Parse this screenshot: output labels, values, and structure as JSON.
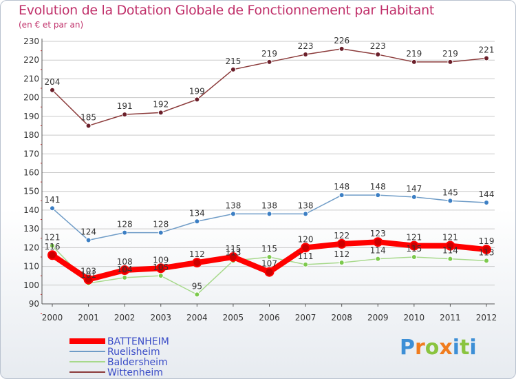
{
  "header": {
    "title": "Evolution de la Dotation Globale de Fonctionnement par Habitant",
    "subtitle": "(en € et par an)"
  },
  "logo": {
    "letters": [
      "P",
      "r",
      "o",
      "x",
      "i",
      "t",
      "i"
    ],
    "colors": [
      "#3d8fd6",
      "#f07c1e",
      "#8ac43f",
      "#f07c1e",
      "#3d8fd6",
      "#8ac43f",
      "#3d8fd6"
    ]
  },
  "chart_data": {
    "type": "line",
    "title": "Evolution de la Dotation Globale de Fonctionnement par Habitant",
    "subtitle": "(en € et par an)",
    "x": [
      "2000",
      "2001",
      "2002",
      "2003",
      "2004",
      "2005",
      "2006",
      "2007",
      "2008",
      "2009",
      "2010",
      "2011",
      "2012"
    ],
    "ylim": [
      90,
      230
    ],
    "yticks": [
      90,
      100,
      110,
      120,
      130,
      140,
      150,
      160,
      170,
      180,
      190,
      200,
      210,
      220,
      230
    ],
    "grid": "horizontal",
    "legend_position": "bottom-left",
    "series": [
      {
        "name": "BATTENHEIM",
        "color": "#ff0000",
        "marker_color": "#cc0000",
        "width": 8,
        "marker_r": 6,
        "values": [
          116,
          103,
          108,
          109,
          112,
          115,
          107,
          120,
          122,
          123,
          121,
          121,
          119
        ]
      },
      {
        "name": "Ruelisheim",
        "color": "#6f9cc7",
        "marker_color": "#3c7fc4",
        "width": 1.5,
        "marker_r": 3.5,
        "values": [
          141,
          124,
          128,
          128,
          134,
          138,
          138,
          138,
          148,
          148,
          147,
          145,
          144
        ]
      },
      {
        "name": "Baldersheim",
        "color": "#a7d98b",
        "marker_color": "#7cc94d",
        "width": 1.5,
        "marker_r": 3.5,
        "values": [
          121,
          101,
          104,
          105,
          95,
          113,
          115,
          111,
          112,
          114,
          115,
          114,
          113
        ]
      },
      {
        "name": "Wittenheim",
        "color": "#8b3a3a",
        "marker_color": "#6b1f2a",
        "width": 1.5,
        "marker_r": 3.5,
        "values": [
          204,
          185,
          191,
          192,
          199,
          215,
          219,
          223,
          226,
          223,
          219,
          219,
          221
        ]
      }
    ],
    "data_labels": {
      "BATTENHEIM": [
        "116",
        "103",
        "108",
        "109",
        "112",
        "115",
        "107",
        "120",
        "122",
        "123",
        "121",
        "121",
        "119"
      ],
      "Ruelisheim": [
        "141",
        "124",
        "128",
        "128",
        "134",
        "138",
        "138",
        "138",
        "148",
        "148",
        "147",
        "145",
        "144"
      ],
      "Baldersheim": [
        "121",
        "101",
        "104",
        "105",
        "95",
        "113",
        "115",
        "111",
        "112",
        "114",
        "115",
        "114",
        "113"
      ],
      "Wittenheim": [
        "204",
        "185",
        "191",
        "192",
        "199",
        "215",
        "219",
        "223",
        "226",
        "223",
        "219",
        "219",
        "221"
      ]
    }
  }
}
